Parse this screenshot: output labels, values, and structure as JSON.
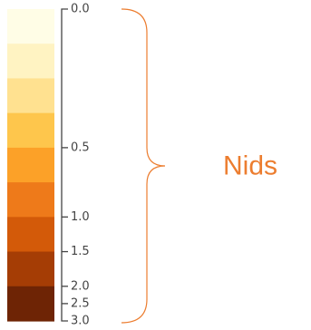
{
  "chart_data": {
    "type": "heatmap",
    "title": "",
    "xlabel": "",
    "ylabel": "",
    "scale_range": [
      0.0,
      3.0
    ],
    "bins": [
      {
        "index": 0,
        "color": "#fffde6"
      },
      {
        "index": 1,
        "color": "#fff3c2"
      },
      {
        "index": 2,
        "color": "#ffe190"
      },
      {
        "index": 3,
        "color": "#fec64c"
      },
      {
        "index": 4,
        "color": "#fca128"
      },
      {
        "index": 5,
        "color": "#ee7a1a"
      },
      {
        "index": 6,
        "color": "#d35a09"
      },
      {
        "index": 7,
        "color": "#a53d05"
      },
      {
        "index": 8,
        "color": "#6e2405"
      }
    ],
    "ticks": [
      {
        "value": 0.0,
        "label": "0.0",
        "bin_edge": 0
      },
      {
        "value": 0.5,
        "label": "0.5",
        "bin_edge": 4
      },
      {
        "value": 1.0,
        "label": "1.0",
        "bin_edge": 6
      },
      {
        "value": 1.5,
        "label": "1.5",
        "bin_edge": 7
      },
      {
        "value": 2.0,
        "label": "2.0",
        "bin_edge": 8
      },
      {
        "value": 2.5,
        "label": "2.5",
        "bin_edge": 8.5
      },
      {
        "value": 3.0,
        "label": "3.0",
        "bin_edge": 9
      }
    ],
    "annotation": {
      "text": "Nids",
      "color": "#ec7d2f",
      "bracket_color": "#ec7d2f"
    },
    "axis_color": "#444444"
  }
}
